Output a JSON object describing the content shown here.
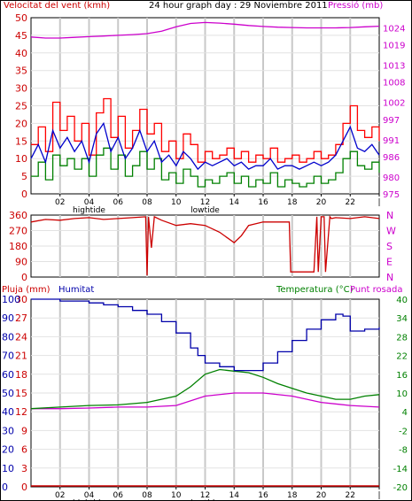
{
  "header": {
    "left_label": "Velocitat del vent (kmh)",
    "title": "24 hour graph day : 29 Noviembre 2011",
    "right_label": "Pressió (mb)"
  },
  "x_axis": {
    "ticks": [
      "02",
      "04",
      "06",
      "08",
      "10",
      "12",
      "14",
      "16",
      "18",
      "20",
      "22",
      "|"
    ],
    "hightide_label": "hightide",
    "lowtide_label": "lowtide"
  },
  "colors": {
    "wind_axis": "#cc0000",
    "pressure_axis": "#cc00cc",
    "wind_max": "#ff0000",
    "wind_avg": "#0000cc",
    "wind_min": "#008000",
    "pressure": "#cc00cc",
    "direction": "#cc0000",
    "humidity": "#0000aa",
    "temperature": "#008000",
    "dewpoint": "#cc00cc",
    "rain": "#cc0000",
    "grid": "#c8c8c8"
  },
  "chart_data": [
    {
      "type": "line",
      "name": "wind_pressure",
      "x_hours": [
        0,
        24
      ],
      "y_left": {
        "label": "Velocitat del vent (kmh)",
        "ylim": [
          0,
          50
        ],
        "ticks": [
          "0",
          "5",
          "10",
          "15",
          "20",
          "25",
          "30",
          "35",
          "40",
          "45",
          "50"
        ]
      },
      "y_right": {
        "label": "Pressió (mb)",
        "ylim": [
          975,
          1027
        ],
        "ticks": [
          "975",
          "980",
          "986",
          "991",
          "997",
          "1002",
          "1008",
          "1013",
          "1019",
          "1024"
        ]
      },
      "series": [
        {
          "axis": "left",
          "hours": [
            0,
            0.5,
            1,
            1.5,
            2,
            2.5,
            3,
            3.5,
            4,
            4.5,
            5,
            5.5,
            6,
            6.5,
            7,
            7.5,
            8,
            8.5,
            9,
            9.5,
            10,
            10.5,
            11,
            11.5,
            12,
            12.5,
            13,
            13.5,
            14,
            14.5,
            15,
            15.5,
            16,
            16.5,
            17,
            17.5,
            18,
            18.5,
            19,
            19.5,
            20,
            20.5,
            21,
            21.5,
            22,
            22.5,
            23,
            23.5,
            24
          ],
          "values": [
            14,
            19,
            12,
            26,
            18,
            22,
            15,
            20,
            11,
            23,
            27,
            16,
            22,
            13,
            18,
            24,
            17,
            20,
            12,
            15,
            10,
            17,
            14,
            9,
            12,
            10,
            11,
            13,
            10,
            12,
            9,
            11,
            10,
            13,
            9,
            10,
            11,
            9,
            10,
            12,
            10,
            11,
            14,
            20,
            25,
            18,
            16,
            19,
            15
          ]
        },
        {
          "axis": "left",
          "hours": [
            0,
            0.5,
            1,
            1.5,
            2,
            2.5,
            3,
            3.5,
            4,
            4.5,
            5,
            5.5,
            6,
            6.5,
            7,
            7.5,
            8,
            8.5,
            9,
            9.5,
            10,
            10.5,
            11,
            11.5,
            12,
            12.5,
            13,
            13.5,
            14,
            14.5,
            15,
            15.5,
            16,
            16.5,
            17,
            17.5,
            18,
            18.5,
            19,
            19.5,
            20,
            20.5,
            21,
            21.5,
            22,
            22.5,
            23,
            23.5,
            24
          ],
          "values": [
            10,
            14,
            9,
            18,
            13,
            16,
            12,
            15,
            9,
            17,
            20,
            12,
            16,
            10,
            13,
            18,
            12,
            15,
            9,
            11,
            8,
            12,
            10,
            7,
            9,
            8,
            9,
            10,
            8,
            9,
            7,
            8,
            8,
            10,
            7,
            8,
            8,
            7,
            8,
            9,
            8,
            9,
            11,
            15,
            19,
            13,
            12,
            14,
            11
          ]
        },
        {
          "axis": "left",
          "hours": [
            0,
            0.5,
            1,
            1.5,
            2,
            2.5,
            3,
            3.5,
            4,
            4.5,
            5,
            5.5,
            6,
            6.5,
            7,
            7.5,
            8,
            8.5,
            9,
            9.5,
            10,
            10.5,
            11,
            11.5,
            12,
            12.5,
            13,
            13.5,
            14,
            14.5,
            15,
            15.5,
            16,
            16.5,
            17,
            17.5,
            18,
            18.5,
            19,
            19.5,
            20,
            20.5,
            21,
            21.5,
            22,
            22.5,
            23,
            23.5,
            24
          ],
          "values": [
            5,
            9,
            4,
            11,
            8,
            10,
            7,
            10,
            5,
            11,
            13,
            7,
            11,
            5,
            8,
            12,
            7,
            10,
            4,
            6,
            3,
            7,
            5,
            2,
            4,
            3,
            5,
            6,
            3,
            5,
            2,
            4,
            3,
            6,
            2,
            4,
            3,
            2,
            3,
            5,
            3,
            4,
            6,
            10,
            12,
            8,
            7,
            9,
            6
          ]
        },
        {
          "axis": "right",
          "hours": [
            0,
            1,
            2,
            3,
            4,
            5,
            6,
            7,
            8,
            9,
            10,
            11,
            12,
            13,
            14,
            15,
            16,
            17,
            18,
            19,
            20,
            21,
            22,
            23,
            24
          ],
          "values": [
            1021.3,
            1021,
            1021,
            1021.2,
            1021.4,
            1021.6,
            1021.8,
            1022,
            1022.3,
            1023,
            1024.3,
            1025.3,
            1025.6,
            1025.4,
            1025.1,
            1024.7,
            1024.4,
            1024.2,
            1024.1,
            1024,
            1024,
            1024,
            1024.1,
            1024.3,
            1024.5
          ]
        }
      ]
    },
    {
      "type": "line",
      "name": "wind_direction",
      "ylim": [
        0,
        360
      ],
      "y_left_ticks": [
        "0",
        "90",
        "180",
        "270",
        "360"
      ],
      "y_right_labels": [
        "N",
        "W",
        "S",
        "E",
        "N"
      ],
      "series": [
        {
          "hours": [
            0,
            1,
            2,
            3,
            4,
            5,
            6,
            7,
            7.9,
            8,
            8.1,
            8.3,
            8.5,
            9,
            10,
            11,
            12,
            12.5,
            13,
            13.5,
            14,
            14.5,
            15,
            16,
            17,
            17.8,
            17.9,
            18,
            19,
            19.5,
            19.7,
            19.8,
            20,
            20.2,
            20.3,
            20.6,
            20.7,
            21,
            22,
            23,
            24
          ],
          "values": [
            320,
            335,
            330,
            340,
            345,
            335,
            340,
            345,
            350,
            10,
            350,
            170,
            350,
            330,
            300,
            310,
            300,
            280,
            260,
            230,
            200,
            240,
            300,
            320,
            320,
            320,
            30,
            30,
            30,
            30,
            350,
            30,
            350,
            350,
            30,
            350,
            340,
            345,
            340,
            350,
            340
          ]
        }
      ]
    },
    {
      "type": "line",
      "name": "rain_humidity_temperature",
      "labels": {
        "rain": "Pluja (mm)",
        "humidity": "Humitat",
        "temperature": "Temperatura (°C)",
        "dewpoint": "Punt rosada"
      },
      "y_rain": {
        "ylim": [
          0,
          30
        ],
        "ticks": [
          "0",
          "3",
          "6",
          "9",
          "12",
          "15",
          "18",
          "21",
          "24",
          "27",
          "30"
        ]
      },
      "y_humidity": {
        "ylim": [
          0,
          100
        ],
        "ticks": [
          "0",
          "10",
          "20",
          "30",
          "40",
          "50",
          "60",
          "70",
          "80",
          "90",
          "100"
        ]
      },
      "y_temp": {
        "ylim": [
          -20,
          40
        ],
        "ticks": [
          "-20",
          "-14",
          "-8",
          "-2",
          "4",
          "10",
          "16",
          "22",
          "28",
          "34",
          "40"
        ]
      },
      "series": [
        {
          "name": "Humitat",
          "axis": "humidity",
          "hours": [
            0,
            1,
            2,
            3,
            4,
            5,
            6,
            7,
            8,
            9,
            10,
            11,
            11.5,
            12,
            13,
            14,
            15,
            16,
            17,
            18,
            19,
            20,
            21,
            21.5,
            22,
            23,
            24
          ],
          "values": [
            100,
            100,
            99,
            99,
            98,
            97,
            96,
            94,
            92,
            88,
            82,
            74,
            70,
            66,
            64,
            62,
            62,
            66,
            72,
            78,
            84,
            89,
            92,
            91,
            83,
            84,
            85
          ]
        },
        {
          "name": "Temperatura (°C)",
          "axis": "temp",
          "hours": [
            0,
            2,
            4,
            6,
            8,
            10,
            11,
            12,
            13,
            14,
            15,
            16,
            17,
            18,
            19,
            20,
            21,
            22,
            23,
            24
          ],
          "values": [
            5,
            5.5,
            6,
            6.2,
            7,
            9,
            12,
            16,
            17.5,
            17,
            16.5,
            15,
            13,
            11.5,
            10,
            9,
            8,
            8,
            9,
            9.5
          ]
        },
        {
          "name": "Punt rosada",
          "axis": "temp",
          "hours": [
            0,
            2,
            4,
            6,
            8,
            10,
            12,
            14,
            16,
            18,
            20,
            22,
            24
          ],
          "values": [
            5,
            5,
            5.2,
            5.5,
            5.5,
            6,
            9,
            10,
            10,
            9,
            7,
            6,
            5.5
          ]
        },
        {
          "name": "Pluja (mm)",
          "axis": "rain",
          "hours": [
            0,
            24
          ],
          "values": [
            0,
            0
          ]
        }
      ]
    }
  ]
}
